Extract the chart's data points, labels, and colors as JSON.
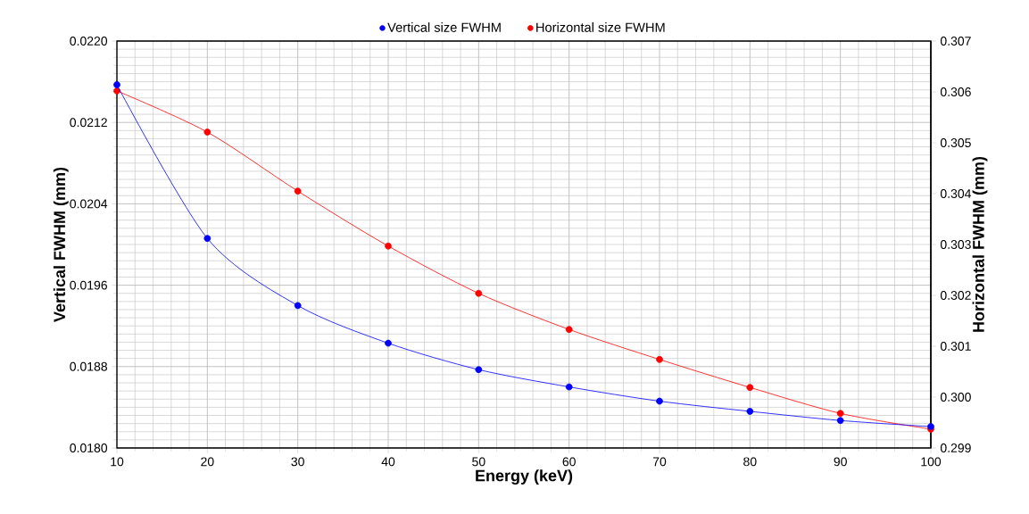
{
  "chart_data": {
    "type": "line",
    "xlabel": "Energy (keV)",
    "ylabel": "Vertical FWHM (mm)",
    "y2label": "Horizontal FWHM (mm)",
    "x": [
      10,
      20,
      30,
      40,
      50,
      60,
      70,
      80,
      90,
      100
    ],
    "series": [
      {
        "name": "Vertical size FWHM",
        "color": "#0000ff",
        "values": [
          0.02157,
          0.02006,
          0.0194,
          0.01903,
          0.01877,
          0.0186,
          0.01846,
          0.01836,
          0.01827,
          0.01821
        ]
      },
      {
        "name": "Horizontal size FWHM",
        "color": "#ff0000",
        "axis": "y2",
        "values": [
          0.30602,
          0.30521,
          0.30405,
          0.30297,
          0.30204,
          0.30133,
          0.30074,
          0.30019,
          0.29968,
          0.29937
        ]
      }
    ],
    "xlim": [
      10,
      100
    ],
    "xticks": [
      10,
      20,
      30,
      40,
      50,
      60,
      70,
      80,
      90,
      100
    ],
    "ylim": [
      0.018,
      0.022
    ],
    "yticks": [
      {
        "value": 0.018,
        "label": "0.0180"
      },
      {
        "value": 0.0188,
        "label": "0.0188"
      },
      {
        "value": 0.0196,
        "label": "0.0196"
      },
      {
        "value": 0.0204,
        "label": "0.0204"
      },
      {
        "value": 0.0212,
        "label": "0.0212"
      },
      {
        "value": 0.022,
        "label": "0.0220"
      }
    ],
    "y2lim": [
      0.299,
      0.307
    ],
    "y2ticks": [
      {
        "value": 0.299,
        "label": "0.299"
      },
      {
        "value": 0.3,
        "label": "0.300"
      },
      {
        "value": 0.301,
        "label": "0.301"
      },
      {
        "value": 0.302,
        "label": "0.302"
      },
      {
        "value": 0.303,
        "label": "0.303"
      },
      {
        "value": 0.304,
        "label": "0.304"
      },
      {
        "value": 0.305,
        "label": "0.305"
      },
      {
        "value": 0.306,
        "label": "0.306"
      },
      {
        "value": 0.307,
        "label": "0.307"
      }
    ],
    "grid": true,
    "legend": "top",
    "marker": "circle",
    "line_style": "solid"
  }
}
